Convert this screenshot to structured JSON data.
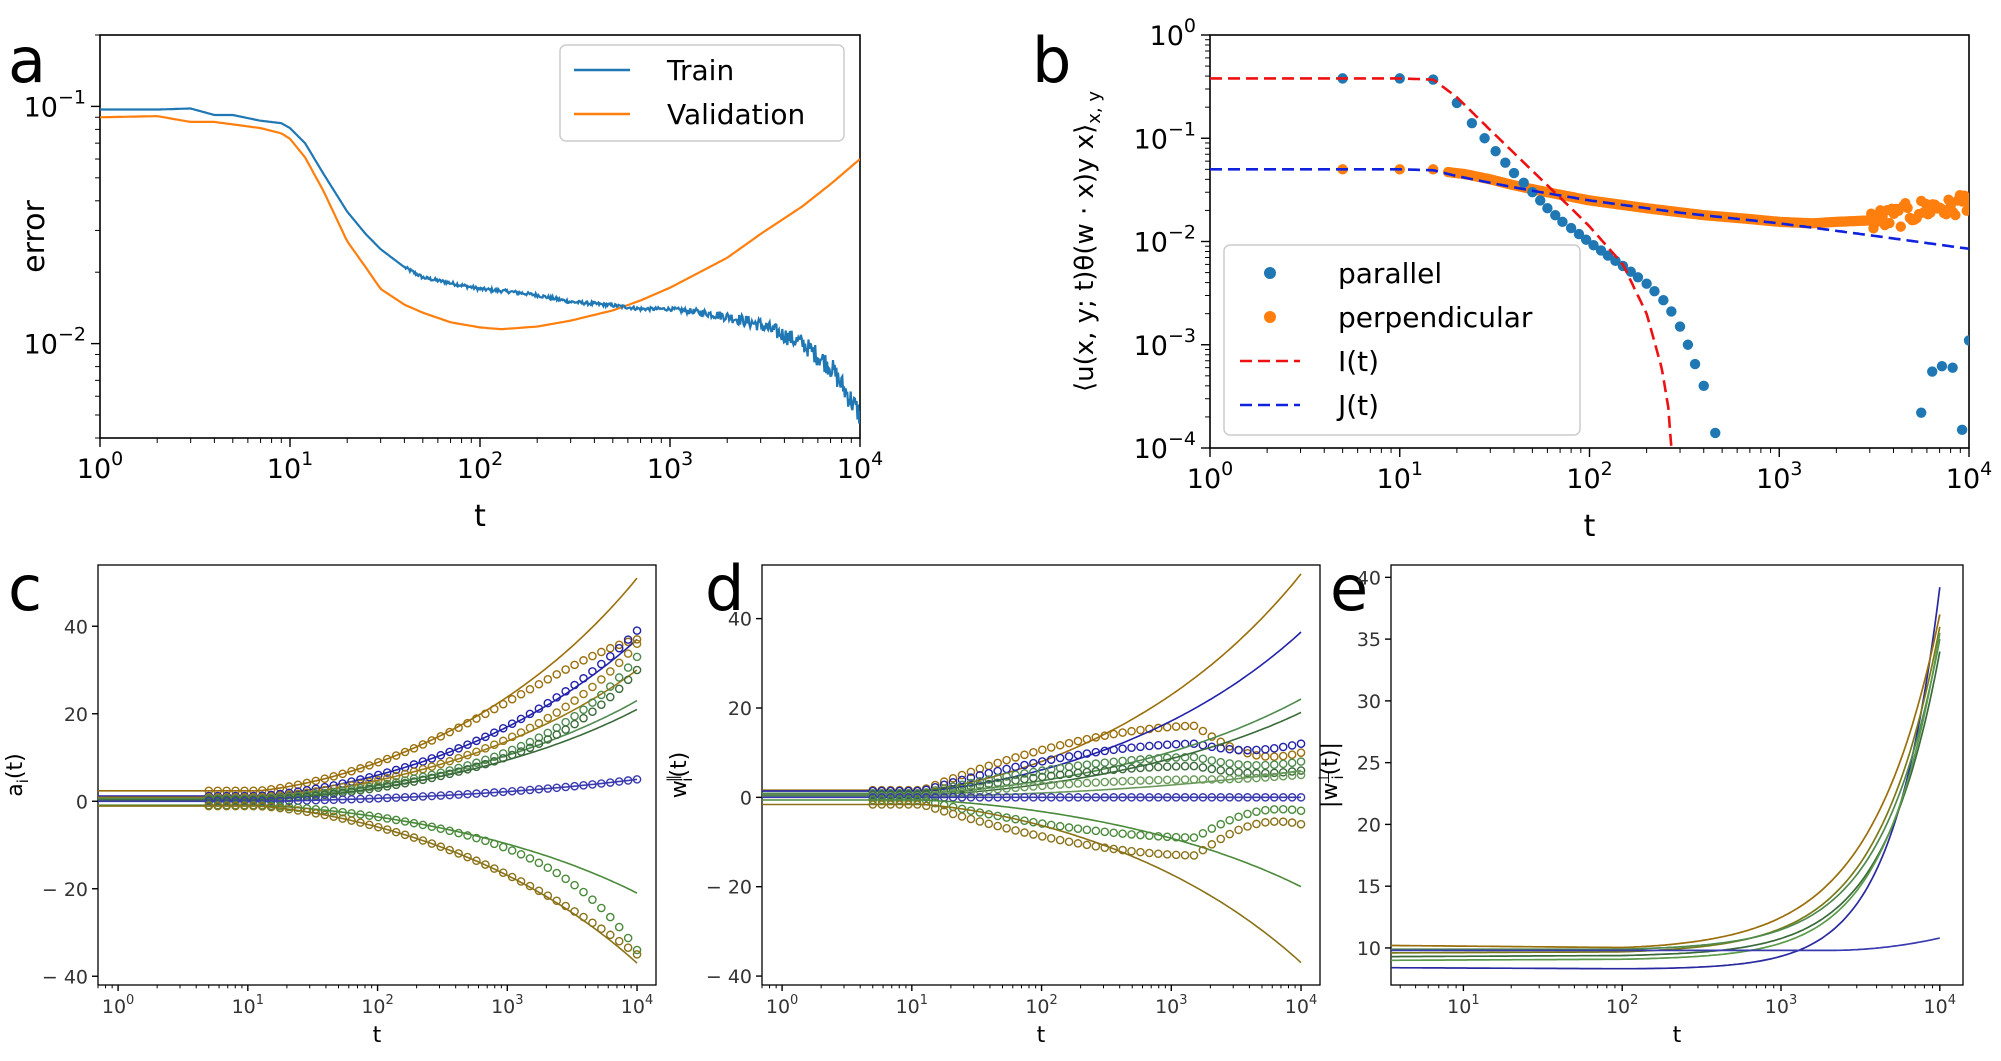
{
  "chart_data": [
    {
      "panel": "a",
      "type": "line",
      "xscale": "log",
      "yscale": "log",
      "xlabel": "t",
      "ylabel": "error",
      "xlim": [
        1,
        10000
      ],
      "ylim": [
        0.004,
        0.2
      ],
      "xticks": [
        {
          "base": "10",
          "exp": "0",
          "v": 1
        },
        {
          "base": "10",
          "exp": "1",
          "v": 10
        },
        {
          "base": "10",
          "exp": "2",
          "v": 100
        },
        {
          "base": "10",
          "exp": "3",
          "v": 1000
        },
        {
          "base": "10",
          "exp": "4",
          "v": 10000
        }
      ],
      "yticks": [
        {
          "base": "10",
          "exp": "−1",
          "v": 0.1
        },
        {
          "base": "10",
          "exp": "−2",
          "v": 0.01
        }
      ],
      "legend_position": "top-right",
      "series": [
        {
          "name": "Train",
          "color": "#1f77b4",
          "noisy": true,
          "x": [
            1,
            2,
            3,
            4,
            5,
            7,
            9,
            10,
            12,
            15,
            20,
            25,
            30,
            40,
            50,
            70,
            100,
            150,
            200,
            300,
            500,
            700,
            1000,
            1500,
            2000,
            3000,
            5000,
            7000,
            10000
          ],
          "y": [
            0.097,
            0.097,
            0.098,
            0.092,
            0.092,
            0.087,
            0.085,
            0.081,
            0.07,
            0.052,
            0.036,
            0.029,
            0.025,
            0.021,
            0.019,
            0.018,
            0.017,
            0.0165,
            0.016,
            0.015,
            0.0145,
            0.014,
            0.014,
            0.0135,
            0.013,
            0.012,
            0.01,
            0.008,
            0.005
          ]
        },
        {
          "name": "Validation",
          "color": "#ff7f0e",
          "noisy": false,
          "x": [
            1,
            2,
            3,
            4,
            5,
            7,
            9,
            10,
            12,
            15,
            20,
            25,
            30,
            40,
            50,
            70,
            100,
            130,
            150,
            200,
            300,
            500,
            700,
            1000,
            2000,
            3000,
            5000,
            7000,
            10000
          ],
          "y": [
            0.09,
            0.091,
            0.086,
            0.086,
            0.084,
            0.081,
            0.077,
            0.073,
            0.061,
            0.044,
            0.027,
            0.021,
            0.017,
            0.0146,
            0.0135,
            0.0123,
            0.0117,
            0.0115,
            0.0116,
            0.0118,
            0.0125,
            0.0138,
            0.0152,
            0.0172,
            0.023,
            0.029,
            0.038,
            0.047,
            0.06
          ]
        }
      ]
    },
    {
      "panel": "b",
      "type": "scatter",
      "xscale": "log",
      "yscale": "log",
      "xlabel": "t",
      "ylabel": "⟨u(x, y; t)θ(w · x)y x⟩",
      "ylabel_sub": "x, y",
      "xlim": [
        1,
        10000
      ],
      "ylim": [
        0.0001,
        1
      ],
      "xticks": [
        {
          "base": "10",
          "exp": "0",
          "v": 1
        },
        {
          "base": "10",
          "exp": "1",
          "v": 10
        },
        {
          "base": "10",
          "exp": "2",
          "v": 100
        },
        {
          "base": "10",
          "exp": "3",
          "v": 1000
        },
        {
          "base": "10",
          "exp": "4",
          "v": 10000
        }
      ],
      "yticks": [
        {
          "base": "10",
          "exp": "0",
          "v": 1
        },
        {
          "base": "10",
          "exp": "−1",
          "v": 0.1
        },
        {
          "base": "10",
          "exp": "−2",
          "v": 0.01
        },
        {
          "base": "10",
          "exp": "−3",
          "v": 0.001
        },
        {
          "base": "10",
          "exp": "−4",
          "v": 0.0001
        }
      ],
      "legend_position": "bottom-left",
      "series": [
        {
          "name": "parallel",
          "kind": "points",
          "color": "#1f77b4",
          "x": [
            5,
            10,
            15,
            20,
            24,
            28,
            32,
            36,
            40,
            45,
            50,
            55,
            60,
            66,
            72,
            80,
            88,
            96,
            105,
            115,
            125,
            137,
            150,
            165,
            180,
            200,
            220,
            245,
            270,
            300,
            330,
            360,
            400,
            460,
            5600,
            6400,
            7200,
            8200,
            9200,
            10000
          ],
          "y": [
            0.38,
            0.38,
            0.37,
            0.22,
            0.14,
            0.1,
            0.075,
            0.058,
            0.046,
            0.037,
            0.03,
            0.025,
            0.021,
            0.018,
            0.0155,
            0.0135,
            0.0118,
            0.0104,
            0.0092,
            0.0082,
            0.0073,
            0.0065,
            0.0058,
            0.0051,
            0.0045,
            0.0039,
            0.0033,
            0.0027,
            0.0021,
            0.0015,
            0.001,
            0.00065,
            0.0004,
            0.00014,
            0.00022,
            0.00055,
            0.00062,
            0.0006,
            0.00015,
            0.0011
          ]
        },
        {
          "name": "perpendicular",
          "kind": "points",
          "color": "#ff7f0e",
          "dense": true,
          "x": [
            5,
            10,
            15,
            18,
            22,
            30,
            40,
            60,
            100,
            200,
            400,
            700,
            1000,
            1500,
            2000,
            3000,
            4000,
            5000,
            6000,
            7000,
            8000,
            9000,
            10000
          ],
          "y": [
            0.05,
            0.05,
            0.05,
            0.047,
            0.045,
            0.04,
            0.035,
            0.03,
            0.025,
            0.021,
            0.018,
            0.0165,
            0.0155,
            0.015,
            0.0155,
            0.016,
            0.017,
            0.019,
            0.021,
            0.022,
            0.02,
            0.024,
            0.026
          ]
        },
        {
          "name": "I(t)",
          "kind": "dashed",
          "color": "#ee1111",
          "x": [
            1,
            10,
            15,
            20,
            30,
            40,
            60,
            80,
            100,
            150,
            200,
            240,
            260,
            270
          ],
          "y": [
            0.38,
            0.38,
            0.37,
            0.25,
            0.12,
            0.072,
            0.035,
            0.021,
            0.014,
            0.006,
            0.002,
            0.0006,
            0.00025,
            0.0001
          ]
        },
        {
          "name": "J(t)",
          "kind": "dashed",
          "color": "#1122dd",
          "x": [
            1,
            10,
            15,
            20,
            30,
            50,
            100,
            300,
            1000,
            3000,
            10000
          ],
          "y": [
            0.05,
            0.05,
            0.049,
            0.043,
            0.037,
            0.031,
            0.025,
            0.019,
            0.015,
            0.0115,
            0.0085
          ]
        }
      ]
    },
    {
      "panel": "c",
      "type": "line",
      "xscale": "log",
      "yscale": "linear",
      "xlabel": "t",
      "ylabel": "a",
      "ylabel_sub": "i",
      "ylabel_tail": "(t)",
      "xlim": [
        0.7,
        14000
      ],
      "ylim": [
        -42,
        54
      ],
      "xticks": [
        {
          "base": "10",
          "exp": "0",
          "v": 1
        },
        {
          "base": "10",
          "exp": "1",
          "v": 10
        },
        {
          "base": "10",
          "exp": "2",
          "v": 100
        },
        {
          "base": "10",
          "exp": "3",
          "v": 1000
        },
        {
          "base": "10",
          "exp": "4",
          "v": 10000
        }
      ],
      "yticks": [
        {
          "label": "40",
          "v": 40
        },
        {
          "label": "20",
          "v": 20
        },
        {
          "label": "0",
          "v": 0
        },
        {
          "label": "− 20",
          "v": -20
        },
        {
          "label": "− 40",
          "v": -40
        }
      ],
      "series": [
        {
          "color": "#9a6e0a",
          "start": 2.4,
          "line_end": 51,
          "marker_end": 37,
          "sag": 0.25
        },
        {
          "color": "#2222aa",
          "start": 1.2,
          "line_end": 37,
          "marker_end": 39,
          "sag": 0.15
        },
        {
          "color": "#9a7a16",
          "start": 0.9,
          "line_end": 30,
          "marker_end": 36,
          "sag": 0.2
        },
        {
          "color": "#4f8a4f",
          "start": 0.6,
          "line_end": 23,
          "marker_end": 33,
          "sag": 0.3
        },
        {
          "color": "#3a6a3a",
          "start": 0.3,
          "line_end": 21,
          "marker_end": 30,
          "sag": 0.35
        },
        {
          "color": "#3a3ab0",
          "start": 0,
          "line_end": 5,
          "marker_end": 5,
          "sag": 0.1
        },
        {
          "color": "#4a8a3a",
          "start": -0.9,
          "line_end": -21,
          "marker_end": -34,
          "sag": 0.3
        },
        {
          "color": "#8a7218",
          "start": -1.1,
          "line_end": -37,
          "marker_end": -35,
          "sag": 0.2
        }
      ]
    },
    {
      "panel": "d",
      "type": "line",
      "xscale": "log",
      "yscale": "linear",
      "xlabel": "t",
      "ylabel": "w",
      "ylabel_sub": "i",
      "ylabel_sup": "∥",
      "ylabel_tail": "(t)",
      "xlim": [
        0.7,
        14000
      ],
      "ylim": [
        -42,
        52
      ],
      "xticks": [
        {
          "base": "10",
          "exp": "0",
          "v": 1
        },
        {
          "base": "10",
          "exp": "1",
          "v": 10
        },
        {
          "base": "10",
          "exp": "2",
          "v": 100
        },
        {
          "base": "10",
          "exp": "3",
          "v": 1000
        },
        {
          "base": "10",
          "exp": "4",
          "v": 10000
        }
      ],
      "yticks": [
        {
          "label": "40",
          "v": 40
        },
        {
          "label": "20",
          "v": 20
        },
        {
          "label": "0",
          "v": 0
        },
        {
          "label": "− 20",
          "v": -20
        },
        {
          "label": "− 40",
          "v": -40
        }
      ],
      "series": [
        {
          "color": "#9a6e0a",
          "start": 1.6,
          "line_end": 50,
          "marker_peak": 16,
          "marker_end": 10
        },
        {
          "color": "#2222aa",
          "start": 1.4,
          "line_end": 37,
          "marker_peak": 12,
          "marker_end": 12
        },
        {
          "color": "#4f8a4f",
          "start": 0.9,
          "line_end": 22,
          "marker_peak": 9,
          "marker_end": 8
        },
        {
          "color": "#3a6a3a",
          "start": 0.5,
          "line_end": 19,
          "marker_peak": 7,
          "marker_end": 6
        },
        {
          "color": "#6a9a5a",
          "start": 0.2,
          "line_end": 6,
          "marker_peak": 4,
          "marker_end": 5
        },
        {
          "color": "#3a3ab0",
          "start": 0,
          "line_end": 0,
          "marker_peak": 0,
          "marker_end": 0
        },
        {
          "color": "#4a8a3a",
          "start": -0.6,
          "line_end": -20,
          "marker_peak": -9,
          "marker_end": -3
        },
        {
          "color": "#8a7218",
          "start": -1.6,
          "line_end": -37,
          "marker_peak": -13,
          "marker_end": -6
        }
      ]
    },
    {
      "panel": "e",
      "type": "line",
      "xscale": "log",
      "yscale": "linear",
      "xlabel": "t",
      "ylabel": "|w",
      "ylabel_sub": "i",
      "ylabel_sup": "⊥",
      "ylabel_tail": "(t)|",
      "xlim": [
        3.5,
        14000
      ],
      "ylim": [
        7,
        41
      ],
      "xticks": [
        {
          "base": "10",
          "exp": "1",
          "v": 10
        },
        {
          "base": "10",
          "exp": "2",
          "v": 100
        },
        {
          "base": "10",
          "exp": "3",
          "v": 1000
        },
        {
          "base": "10",
          "exp": "4",
          "v": 10000
        }
      ],
      "yticks": [
        {
          "label": "40",
          "v": 40
        },
        {
          "label": "35",
          "v": 35
        },
        {
          "label": "30",
          "v": 30
        },
        {
          "label": "25",
          "v": 25
        },
        {
          "label": "20",
          "v": 20
        },
        {
          "label": "15",
          "v": 15
        },
        {
          "label": "10",
          "v": 10
        }
      ],
      "series": [
        {
          "color": "#2a2aa0",
          "start": 8.4,
          "mid": 8.3,
          "end": 39.2,
          "k": 1.25
        },
        {
          "color": "#9a6e0a",
          "start": 10.2,
          "mid": 10.0,
          "end": 37.0,
          "k": 0.85
        },
        {
          "color": "#7a7a18",
          "start": 9.6,
          "mid": 9.7,
          "end": 36.0,
          "k": 0.95
        },
        {
          "color": "#4f8a4f",
          "start": 9.9,
          "mid": 9.9,
          "end": 35.0,
          "k": 1.0
        },
        {
          "color": "#3a6a3a",
          "start": 9.3,
          "mid": 9.4,
          "end": 34.0,
          "k": 1.05
        },
        {
          "color": "#5a9a4a",
          "start": 9.0,
          "mid": 9.1,
          "end": 35.5,
          "k": 1.1
        },
        {
          "color": "#3a3ab0",
          "start": 9.8,
          "mid": 9.8,
          "end": 10.8,
          "k": 3.0,
          "flat": true
        }
      ]
    }
  ]
}
